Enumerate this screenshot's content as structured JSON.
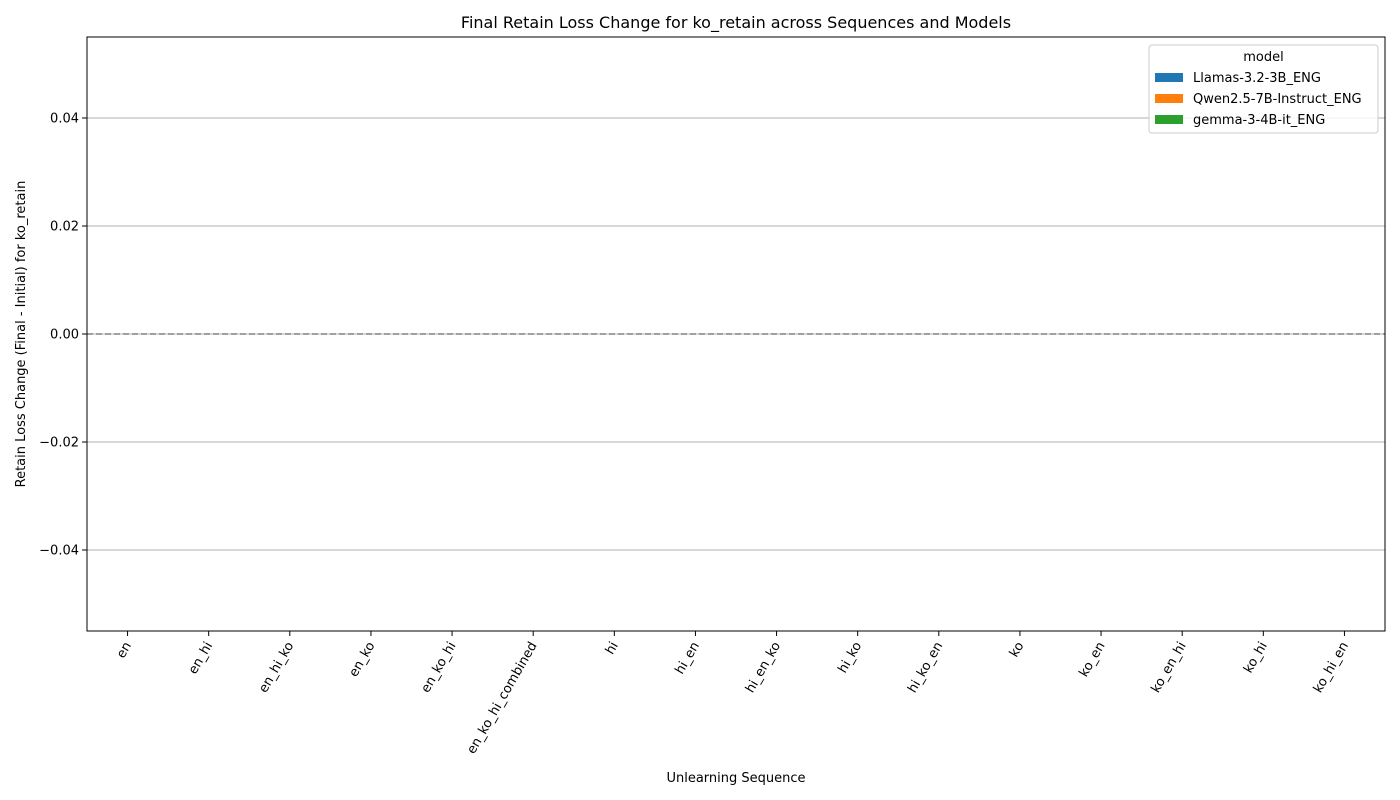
{
  "chart_data": {
    "type": "bar",
    "title": "Final Retain Loss Change for ko_retain across Sequences and Models",
    "xlabel": "Unlearning Sequence",
    "ylabel": "Retain Loss Change (Final - Initial) for ko_retain",
    "categories": [
      "en",
      "en_hi",
      "en_hi_ko",
      "en_ko",
      "en_ko_hi",
      "en_ko_hi_combined",
      "hi",
      "hi_en",
      "hi_en_ko",
      "hi_ko",
      "hi_ko_en",
      "ko",
      "ko_en",
      "ko_en_hi",
      "ko_hi",
      "ko_hi_en"
    ],
    "series": [
      {
        "name": "Llamas-3.2-3B_ENG",
        "color": "#1f77b4",
        "values": [
          0,
          0,
          0,
          0,
          0,
          0,
          0,
          0,
          0,
          0,
          0,
          0,
          0,
          0,
          0,
          0
        ]
      },
      {
        "name": "Qwen2.5-7B-Instruct_ENG",
        "color": "#ff7f0e",
        "values": [
          0,
          0,
          0,
          0,
          0,
          0,
          0,
          0,
          0,
          0,
          0,
          0,
          0,
          0,
          0,
          0
        ]
      },
      {
        "name": "gemma-3-4B-it_ENG",
        "color": "#2ca02c",
        "values": [
          0,
          0,
          0,
          0,
          0,
          0,
          0,
          0,
          0,
          0,
          0,
          0,
          0,
          0,
          0,
          0
        ]
      }
    ],
    "ylim": [
      -0.055,
      0.055
    ],
    "yticks": [
      -0.04,
      -0.02,
      0.0,
      0.02,
      0.04
    ],
    "ytick_labels": [
      "−0.04",
      "−0.02",
      "0.00",
      "0.02",
      "0.04"
    ],
    "grid": "horizontal",
    "reference_line": 0,
    "legend": {
      "title": "model",
      "position": "top-right"
    }
  }
}
